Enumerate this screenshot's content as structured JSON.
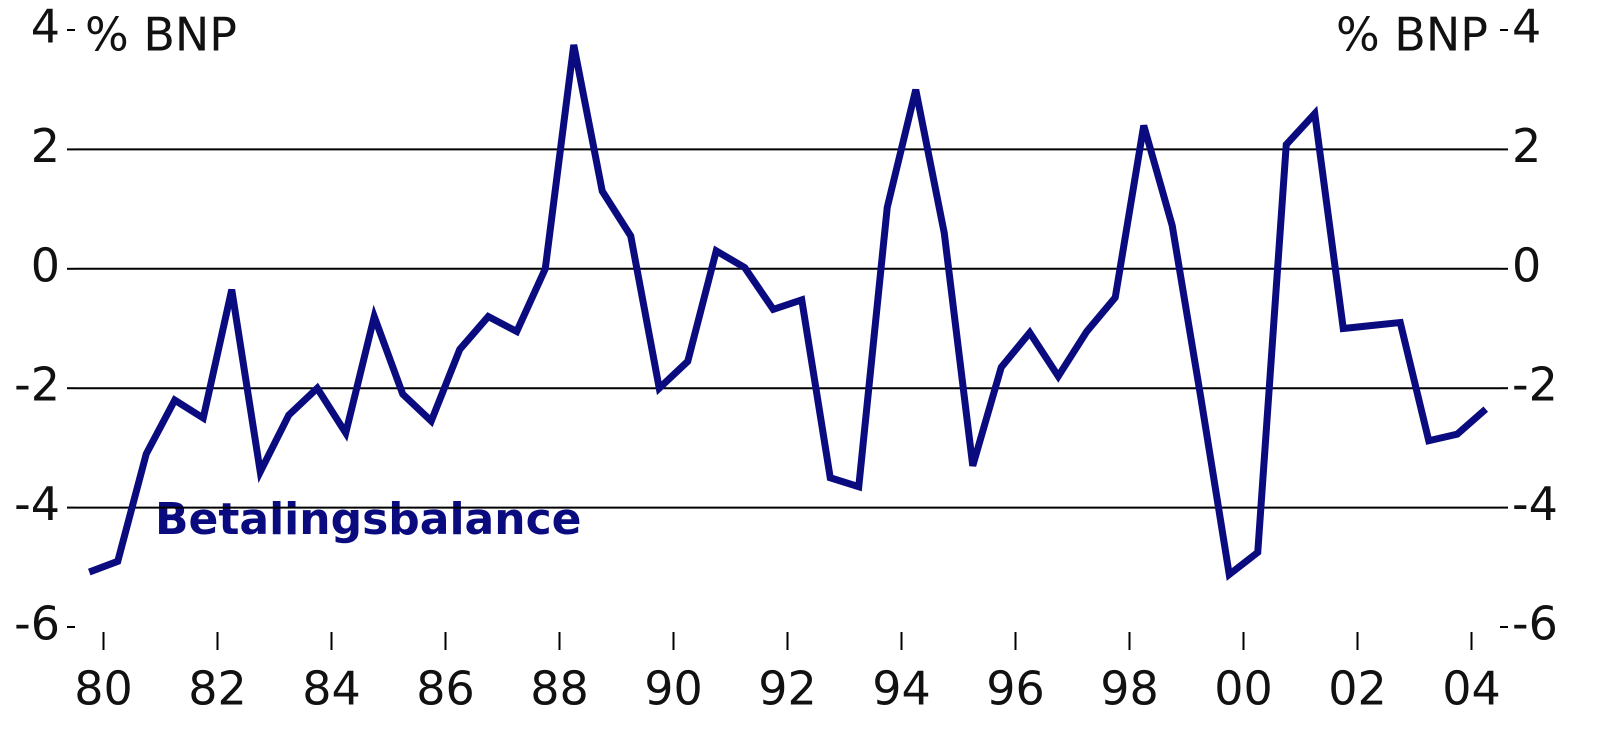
{
  "chart_data": {
    "type": "line",
    "y_label_left": "% BNP",
    "y_label_right": "% BNP",
    "annotation": "Betalingsbalance",
    "x": [
      1979.75,
      1980.25,
      1980.75,
      1981.25,
      1981.75,
      1982.25,
      1982.75,
      1983.25,
      1983.75,
      1984.25,
      1984.75,
      1985.25,
      1985.75,
      1986.25,
      1986.75,
      1987.25,
      1987.75,
      1988.25,
      1988.75,
      1989.25,
      1989.75,
      1990.25,
      1990.75,
      1991.25,
      1991.75,
      1992.25,
      1992.75,
      1993.25,
      1993.75,
      1994.25,
      1994.75,
      1995.25,
      1995.75,
      1996.25,
      1996.75,
      1997.25,
      1997.75,
      1998.25,
      1998.75,
      1999.25,
      1999.75,
      2000.25,
      2000.75,
      2001.25,
      2001.75,
      2002.25,
      2002.75,
      2003.25,
      2003.75,
      2004.25
    ],
    "series": [
      {
        "name": "Betalingsbalance",
        "color": "#0b0b80",
        "values": [
          -5.08,
          -4.9,
          -3.1,
          -2.2,
          -2.5,
          -0.35,
          -3.4,
          -2.45,
          -2.0,
          -2.75,
          -0.8,
          -2.1,
          -2.55,
          -1.35,
          -0.8,
          -1.05,
          0,
          3.75,
          1.3,
          0.55,
          -2.0,
          -1.55,
          0.3,
          0.02,
          -0.68,
          -0.52,
          -3.5,
          -3.65,
          1.03,
          3.0,
          0.6,
          -3.3,
          -1.65,
          -1.07,
          -1.8,
          -1.05,
          -0.48,
          2.4,
          0.72,
          -2.15,
          -5.12,
          -4.75,
          2.08,
          2.6,
          -1.0,
          -0.95,
          -0.9,
          -2.88,
          -2.77,
          -2.35
        ]
      }
    ],
    "xlim": [
      1979.5,
      2004.5
    ],
    "xticks": [
      {
        "value": 1980,
        "label": "80"
      },
      {
        "value": 1982,
        "label": "82"
      },
      {
        "value": 1984,
        "label": "84"
      },
      {
        "value": 1986,
        "label": "86"
      },
      {
        "value": 1988,
        "label": "88"
      },
      {
        "value": 1990,
        "label": "90"
      },
      {
        "value": 1992,
        "label": "92"
      },
      {
        "value": 1994,
        "label": "94"
      },
      {
        "value": 1996,
        "label": "96"
      },
      {
        "value": 1998,
        "label": "98"
      },
      {
        "value": 2000,
        "label": "00"
      },
      {
        "value": 2002,
        "label": "02"
      },
      {
        "value": 2004,
        "label": "04"
      }
    ],
    "ylim": [
      -6,
      4
    ],
    "yticks": [
      4,
      2,
      0,
      -2,
      -4,
      -6
    ],
    "grid": true
  }
}
